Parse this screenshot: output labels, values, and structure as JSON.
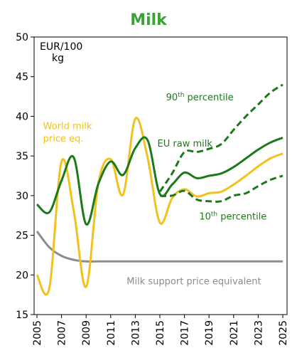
{
  "chart_data": {
    "type": "line",
    "title": "Milk",
    "unit_label_line1": "EUR/100",
    "unit_label_line2": "kg",
    "xlabel": "",
    "ylabel": "",
    "xlim": [
      2005,
      2025
    ],
    "ylim": [
      15,
      50
    ],
    "grid": false,
    "x_tick_labels": [
      "2005",
      "2007",
      "2009",
      "2011",
      "2013",
      "2015",
      "2017",
      "2019",
      "2021",
      "2023",
      "2025"
    ],
    "y_tick_labels": [
      "15",
      "20",
      "25",
      "30",
      "35",
      "40",
      "45",
      "50"
    ],
    "series": [
      {
        "name": "EU raw milk",
        "color": "#1a7a1a",
        "style": "solid",
        "x": [
          2005,
          2006,
          2007,
          2008,
          2009,
          2010,
          2011,
          2012,
          2013,
          2014,
          2015,
          2016,
          2017,
          2018,
          2019,
          2020,
          2021,
          2022,
          2023,
          2024,
          2025
        ],
        "values": [
          28.9,
          27.9,
          31.9,
          34.8,
          26.4,
          31.5,
          34.3,
          32.6,
          36.0,
          37.0,
          30.2,
          31.4,
          32.9,
          32.2,
          32.5,
          32.8,
          33.6,
          34.7,
          35.8,
          36.7,
          37.3
        ]
      },
      {
        "name": "World milk price eq.",
        "color": "#f2c11e",
        "style": "solid",
        "x": [
          2005,
          2006,
          2007,
          2008,
          2009,
          2010,
          2011,
          2012,
          2013,
          2014,
          2015,
          2016,
          2017,
          2018,
          2019,
          2020,
          2021,
          2022,
          2023,
          2024,
          2025
        ],
        "values": [
          20.0,
          18.3,
          34.3,
          28.0,
          18.5,
          31.6,
          34.6,
          30.1,
          39.7,
          34.8,
          26.6,
          29.7,
          30.8,
          29.9,
          30.3,
          30.5,
          31.4,
          32.5,
          33.7,
          34.7,
          35.3
        ]
      },
      {
        "name": "90th percentile",
        "color": "#1a7a1a",
        "style": "dashed",
        "x": [
          2015,
          2016,
          2017,
          2018,
          2019,
          2020,
          2021,
          2022,
          2023,
          2024,
          2025
        ],
        "values": [
          30.5,
          32.8,
          35.5,
          35.5,
          35.9,
          36.5,
          38.3,
          40.0,
          41.5,
          43.0,
          44.0
        ]
      },
      {
        "name": "10th percentile",
        "color": "#1a7a1a",
        "style": "dashed",
        "x": [
          2015,
          2016,
          2017,
          2018,
          2019,
          2020,
          2021,
          2022,
          2023,
          2024,
          2025
        ],
        "values": [
          30.0,
          30.0,
          30.6,
          29.5,
          29.3,
          29.3,
          30.0,
          30.3,
          31.2,
          32.0,
          32.5
        ]
      },
      {
        "name": "Milk support price equivalent",
        "color": "#8c8c8c",
        "style": "solid",
        "x": [
          2005,
          2006,
          2007,
          2008,
          2009,
          2010,
          2011,
          2012,
          2013,
          2014,
          2015,
          2016,
          2017,
          2018,
          2019,
          2020,
          2021,
          2022,
          2023,
          2024,
          2025
        ],
        "values": [
          25.5,
          23.5,
          22.4,
          21.9,
          21.7,
          21.7,
          21.7,
          21.7,
          21.7,
          21.7,
          21.7,
          21.7,
          21.7,
          21.7,
          21.7,
          21.7,
          21.7,
          21.7,
          21.7,
          21.7,
          21.7
        ]
      }
    ],
    "annotations": [
      {
        "text": "90",
        "sup": "th",
        "rest": " percentile",
        "color": "#1a7a1a",
        "anchor_x": 2015.5,
        "anchor_y": 42.0
      },
      {
        "text": "EU raw milk",
        "color": "#1a7a1a",
        "anchor_x": 2014.8,
        "anchor_y": 36.2
      },
      {
        "text": "World milk",
        "color": "#f2c11e",
        "anchor_x": 2005.5,
        "anchor_y": 38.4
      },
      {
        "text": "price eq.",
        "color": "#f2c11e",
        "anchor_x": 2005.5,
        "anchor_y": 36.8
      },
      {
        "text": "10",
        "sup": "th",
        "rest": " percentile",
        "color": "#1a7a1a",
        "anchor_x": 2018.2,
        "anchor_y": 27.0
      },
      {
        "text": "Milk support price equivalent",
        "color": "#8c8c8c",
        "anchor_x": 2012.3,
        "anchor_y": 18.8
      }
    ],
    "colors": {
      "title": "#3aa335",
      "axis": "#000000"
    }
  }
}
